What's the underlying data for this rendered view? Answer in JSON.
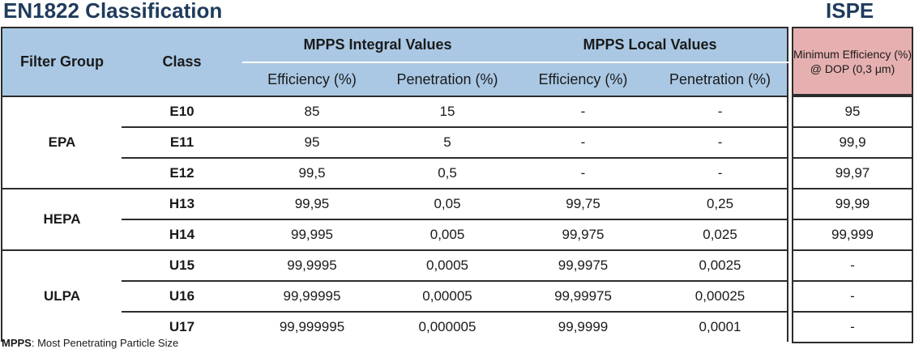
{
  "titles": {
    "left": "EN1822 Classification",
    "right": "ISPE"
  },
  "header": {
    "filter_group": "Filter Group",
    "class": "Class",
    "integral": "MPPS Integral Values",
    "local": "MPPS Local Values",
    "efficiency": "Efficiency (%)",
    "penetration": "Penetration (%)",
    "ispe_header": "Minimum Efficiency (%) @ DOP (0,3 μm)"
  },
  "groups": [
    {
      "name": "EPA",
      "rows": [
        {
          "cls": "E10",
          "int_eff": "85",
          "int_pen": "15",
          "loc_eff": "-",
          "loc_pen": "-",
          "ispe": "95"
        },
        {
          "cls": "E11",
          "int_eff": "95",
          "int_pen": "5",
          "loc_eff": "-",
          "loc_pen": "-",
          "ispe": "99,9"
        },
        {
          "cls": "E12",
          "int_eff": "99,5",
          "int_pen": "0,5",
          "loc_eff": "-",
          "loc_pen": "-",
          "ispe": "99,97"
        }
      ]
    },
    {
      "name": "HEPA",
      "rows": [
        {
          "cls": "H13",
          "int_eff": "99,95",
          "int_pen": "0,05",
          "loc_eff": "99,75",
          "loc_pen": "0,25",
          "ispe": "99,99"
        },
        {
          "cls": "H14",
          "int_eff": "99,995",
          "int_pen": "0,005",
          "loc_eff": "99,975",
          "loc_pen": "0,025",
          "ispe": "99,999"
        }
      ]
    },
    {
      "name": "ULPA",
      "rows": [
        {
          "cls": "U15",
          "int_eff": "99,9995",
          "int_pen": "0,0005",
          "loc_eff": "99,9975",
          "loc_pen": "0,0025",
          "ispe": "-"
        },
        {
          "cls": "U16",
          "int_eff": "99,99995",
          "int_pen": "0,00005",
          "loc_eff": "99,99975",
          "loc_pen": "0,00025",
          "ispe": "-"
        },
        {
          "cls": "U17",
          "int_eff": "99,999995",
          "int_pen": "0,000005",
          "loc_eff": "99,9999",
          "loc_pen": "0,0001",
          "ispe": "-"
        }
      ]
    }
  ],
  "footnote": {
    "term": "MPPS",
    "text": ": Most Penetrating Particle Size"
  },
  "colors": {
    "header_blue": "#aac8e4",
    "header_pink": "#e6b0b0",
    "title": "#1f3b5c"
  }
}
